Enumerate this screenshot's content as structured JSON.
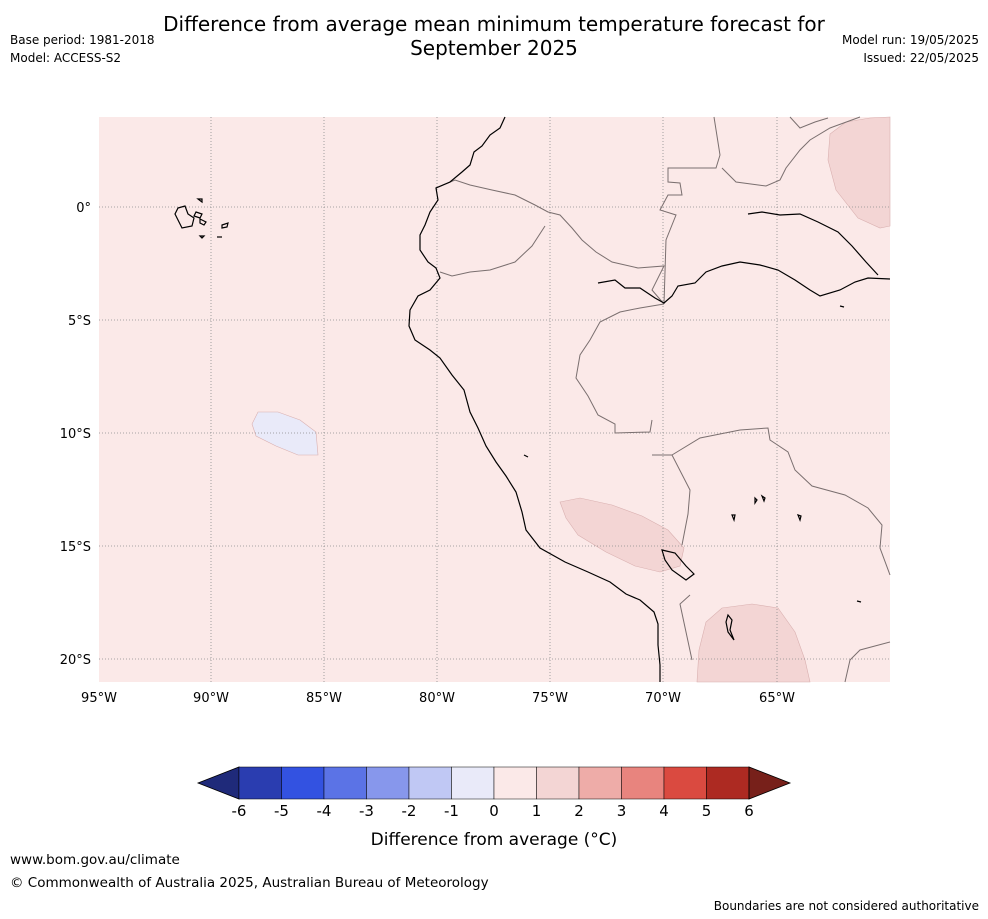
{
  "title_line1": "Difference from average mean minimum temperature forecast for",
  "title_line2": "September 2025",
  "base_period": "Base period: 1981-2018",
  "model": "Model: ACCESS-S2",
  "model_run": "Model run: 19/05/2025",
  "issued": "Issued: 22/05/2025",
  "map": {
    "lon_labels": [
      "95°W",
      "90°W",
      "85°W",
      "80°W",
      "75°W",
      "70°W",
      "65°W"
    ],
    "lat_labels": [
      "0°",
      "5°S",
      "10°S",
      "15°S",
      "20°S"
    ],
    "colors": {
      "background_anomaly_0_1": "#fbe9e8",
      "anomaly_1_2": "#f3d5d4",
      "anomaly_m1_0": "#e9eaf9",
      "coastline": "#000000",
      "borders": "#7a6f6f",
      "gridline": "#8c8c8c"
    }
  },
  "colorbar": {
    "ticks": [
      "-6",
      "-5",
      "-4",
      "-3",
      "-2",
      "-1",
      "0",
      "1",
      "2",
      "3",
      "4",
      "5",
      "6"
    ],
    "colors": [
      "#1f2a7a",
      "#2a3db0",
      "#3352e1",
      "#5b73e6",
      "#8797ec",
      "#c0c8f4",
      "#e9eaf9",
      "#fbe9e8",
      "#f3d5d4",
      "#eeaca8",
      "#e8847e",
      "#da4a40",
      "#ad2a22",
      "#77201a"
    ],
    "label": "Difference from average (°C)"
  },
  "footer": {
    "url": "www.bom.gov.au/climate",
    "copyright": "© Commonwealth of Australia 2025, Australian Bureau of Meteorology",
    "disclaimer": "Boundaries are not considered authoritative"
  }
}
